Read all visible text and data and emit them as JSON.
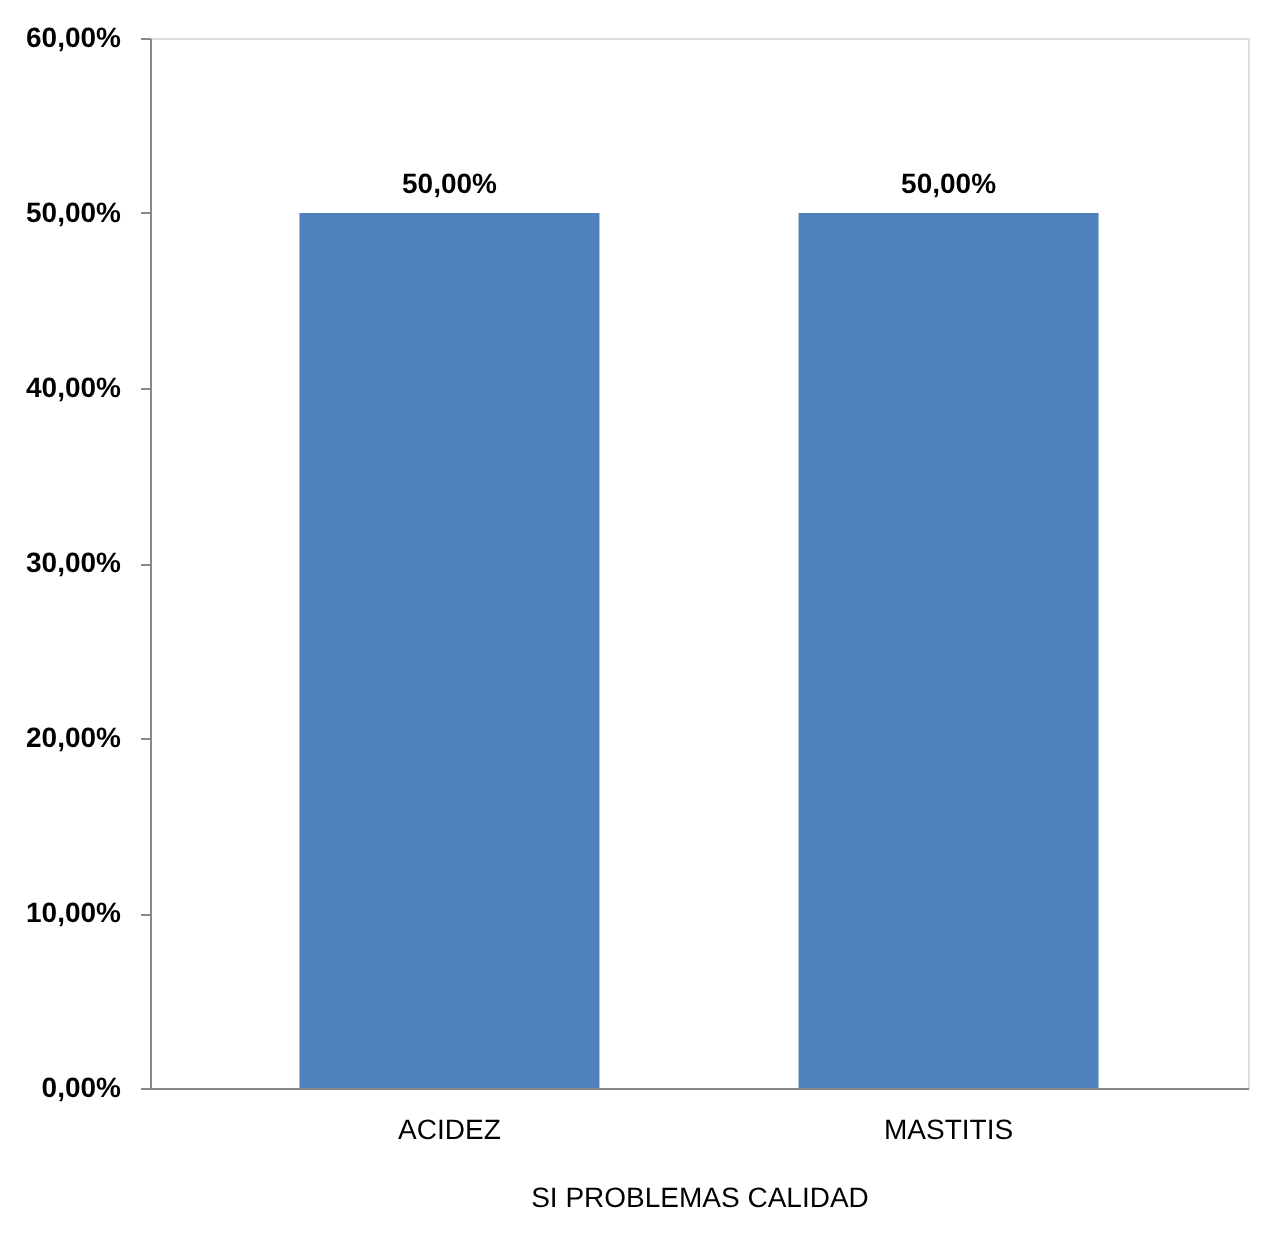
{
  "chart_data": {
    "type": "bar",
    "categories": [
      "ACIDEZ",
      "MASTITIS"
    ],
    "values": [
      50,
      50
    ],
    "color": "#4f81bd",
    "value_labels": [
      "50,00%",
      "50,00%"
    ],
    "xlabel": "SI PROBLEMAS CALIDAD",
    "ylim": [
      0,
      60
    ],
    "yticks": [
      {
        "value": 0,
        "label": "0,00%"
      },
      {
        "value": 10,
        "label": "10,00%"
      },
      {
        "value": 20,
        "label": "20,00%"
      },
      {
        "value": 30,
        "label": "30,00%"
      },
      {
        "value": 40,
        "label": "40,00%"
      },
      {
        "value": 50,
        "label": "50,00%"
      },
      {
        "value": 60,
        "label": "60,00%"
      }
    ],
    "grid": false
  }
}
